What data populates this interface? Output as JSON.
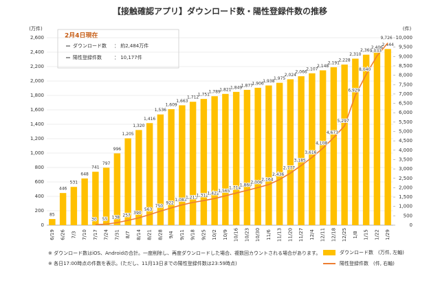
{
  "chart_data": {
    "type": "bar-line",
    "title": "【接触確認アプリ】ダウンロード数・陽性登録件数の推移",
    "y_label": "(万件)",
    "y2_label": "(件)",
    "categories": [
      "6/19",
      "6/26",
      "7/3",
      "7/10",
      "7/17",
      "7/24",
      "7/31",
      "8/7",
      "8/14",
      "8/21",
      "8/28",
      "9/4",
      "9/11",
      "9/18",
      "9/25",
      "10/2",
      "10/9",
      "10/16",
      "10/23",
      "10/30",
      "11/6",
      "11/13",
      "11/20",
      "11/27",
      "12/4",
      "12/11",
      "12/18",
      "12/25",
      "1/8",
      "1/15",
      "1/22",
      "1/29"
    ],
    "series": [
      {
        "name": "ダウンロード数　(万件, 左軸)",
        "type": "bar",
        "color": "#ffc000",
        "values": [
          85,
          446,
          531,
          648,
          741,
          797,
          996,
          1205,
          1320,
          1416,
          1536,
          1609,
          1663,
          1712,
          1751,
          1789,
          1821,
          1849,
          1877,
          1906,
          1938,
          1975,
          2024,
          2066,
          2107,
          2148,
          2191,
          2228,
          2310,
          2365,
          2406,
          2444
        ],
        "value_labels": [
          "85",
          "446",
          "531",
          "648",
          "741",
          "797",
          "996",
          "1,205",
          "1,320",
          "1,416",
          "1,536",
          "1,609",
          "1,663",
          "1,712",
          "1,751",
          "1,789",
          "1,821",
          "1,849",
          "1,877",
          "1,906",
          "1,938",
          "1,975",
          "2,024",
          "2,066",
          "2,107",
          "2,148",
          "2,191",
          "2,228",
          "2,310",
          "2,365",
          "2,406",
          "2,444"
        ]
      },
      {
        "name": "陽性登録件数　(件, 右軸)",
        "type": "line",
        "axis": "y2",
        "color": "#ed7d31",
        "values": [
          null,
          null,
          null,
          null,
          30,
          55,
          138,
          257,
          390,
          563,
          750,
          922,
          1083,
          1213,
          1312,
          1422,
          1565,
          1714,
          1860,
          2006,
          2164,
          2436,
          2777,
          3185,
          3616,
          4108,
          4673,
          5297,
          6929,
          8040,
          9033,
          9726
        ],
        "value_labels": [
          null,
          null,
          null,
          null,
          "30",
          "55",
          "138",
          "257",
          "390",
          "563",
          "750",
          "922",
          "1,083",
          "1,213",
          "1,312",
          "1,422",
          "1,565",
          "1,714",
          "1,860",
          "2,006",
          "2,164",
          "2,436",
          "2,777",
          "3,185",
          "3,616",
          "4,108",
          "4,673",
          "5,297",
          "6,929",
          "8,040",
          "9,033",
          "9,726"
        ]
      }
    ],
    "ylim": [
      0,
      2600
    ],
    "yticks": [
      0,
      200,
      400,
      600,
      800,
      {
        "value": 1000,
        "label": "1,000"
      },
      {
        "value": 1200,
        "label": "1,200"
      },
      {
        "value": 1400,
        "label": "1,400"
      },
      {
        "value": 1600,
        "label": "1,600"
      },
      {
        "value": 1800,
        "label": "1,800"
      },
      {
        "value": 2000,
        "label": "2,000"
      },
      {
        "value": 2200,
        "label": "2,200"
      },
      {
        "value": 2400,
        "label": "2,400"
      },
      {
        "value": 2600,
        "label": "2,600"
      }
    ],
    "y2lim": [
      0,
      10000
    ],
    "y2ticks": [
      0,
      500,
      {
        "value": 1000,
        "label": "1,000"
      },
      {
        "value": 1500,
        "label": "1,500"
      },
      {
        "value": 2000,
        "label": "2,000"
      },
      {
        "value": 2500,
        "label": "2,500"
      },
      {
        "value": 3000,
        "label": "3,000"
      },
      {
        "value": 3500,
        "label": "3,500"
      },
      {
        "value": 4000,
        "label": "4,000"
      },
      {
        "value": 4500,
        "label": "4,500"
      },
      {
        "value": 5000,
        "label": "5,000"
      },
      {
        "value": 5500,
        "label": "5,500"
      },
      {
        "value": 6000,
        "label": "6,000"
      },
      {
        "value": 6500,
        "label": "6,500"
      },
      {
        "value": 7000,
        "label": "7,000"
      },
      {
        "value": 7500,
        "label": "7,500"
      },
      {
        "value": 8000,
        "label": "8,000"
      },
      {
        "value": 8500,
        "label": "8,500"
      },
      {
        "value": 9000,
        "label": "9,000"
      },
      {
        "value": 9500,
        "label": "9,500"
      },
      {
        "value": 10000,
        "label": "10,000"
      }
    ],
    "grid": true,
    "inset": {
      "date": "2月4日現在",
      "rows": [
        {
          "label": "ダウンロード数",
          "value": "： 約2,484万件"
        },
        {
          "label": "陽性登録件数",
          "value": "： 10,177件"
        }
      ]
    },
    "notes": [
      "※ ダウンロード数はiOS、Androidの合計。一度削除し、再度ダウンロードした場合、複数回カウントされる場合があります。",
      "※ 各日17:00時点の件数を表示。(ただし、11月13日までの陽性登録件数は23:59時点)"
    ]
  }
}
